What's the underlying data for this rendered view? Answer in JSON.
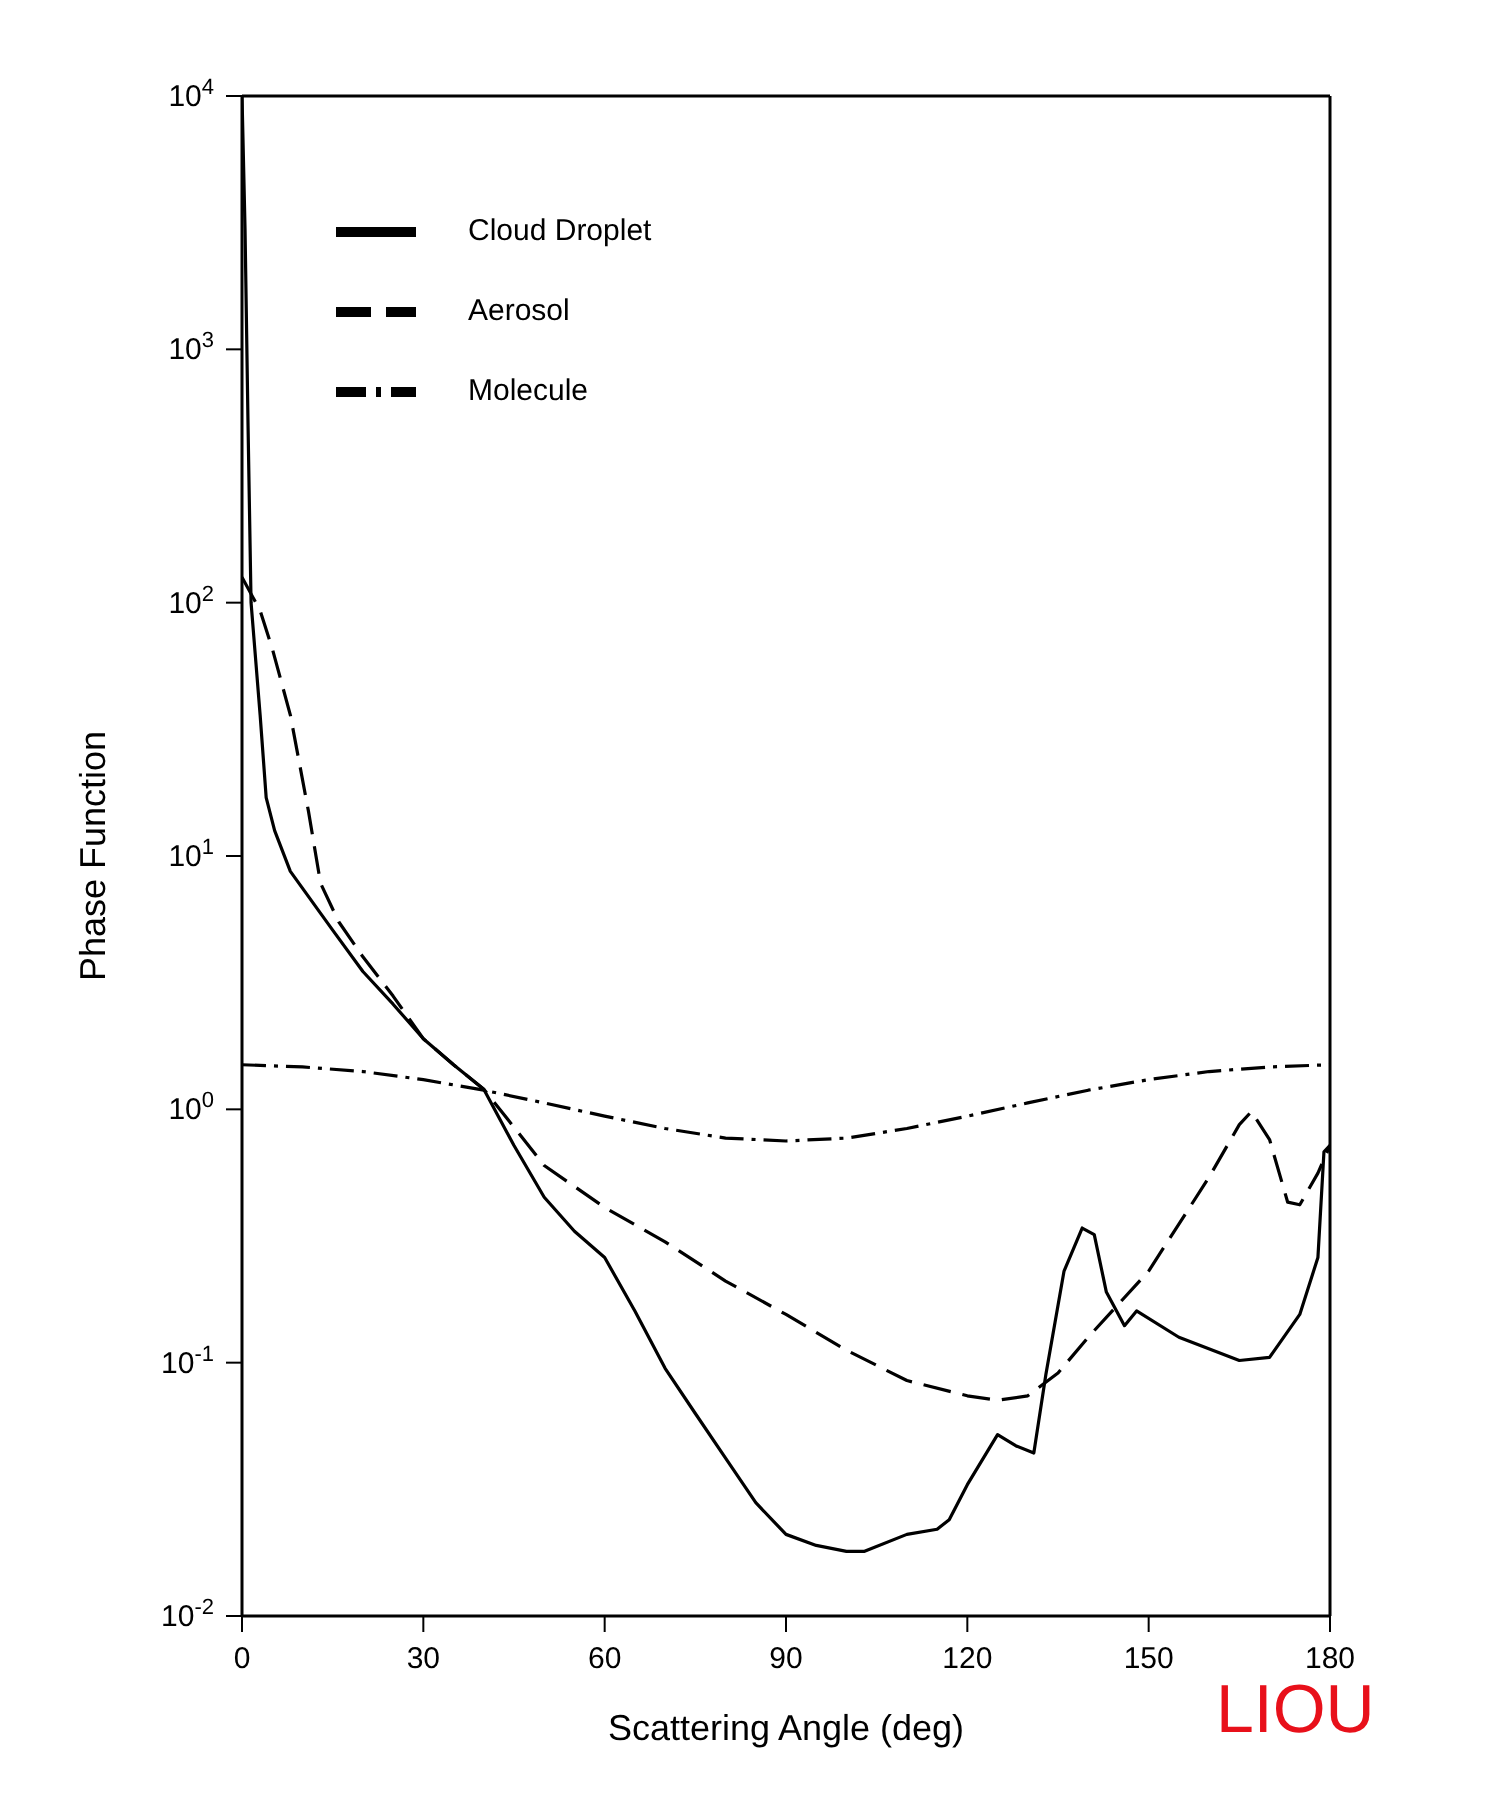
{
  "chart_data": {
    "type": "line",
    "xlabel": "Scattering Angle (deg)",
    "ylabel": "Phase Function",
    "log": "y",
    "grid": false,
    "legend": "top left",
    "marker": "none",
    "xlim": [
      0,
      180
    ],
    "xticks": [
      0,
      30,
      60,
      90,
      120,
      150,
      180
    ],
    "ylim": [
      0.01,
      10000
    ],
    "yticks": [
      {
        "value": 0.01,
        "label": "10$^{-2}$"
      },
      {
        "value": 0.1,
        "label": "10$^{-1}$"
      },
      {
        "value": 1,
        "label": "10$^{0}$"
      },
      {
        "value": 10,
        "label": "10$^{1}$"
      },
      {
        "value": 100,
        "label": "10$^{2}$"
      },
      {
        "value": 1000,
        "label": "10$^{3}$"
      },
      {
        "value": 10000,
        "label": "10$^{4}$"
      }
    ],
    "annotations": [
      "LIOU"
    ],
    "series": [
      {
        "name": "Cloud Droplet",
        "color": "#000000",
        "line_style": "solid",
        "x": [
          0,
          0.5,
          1,
          1.5,
          3,
          4,
          5.4,
          8,
          15,
          20,
          25,
          30,
          35,
          40,
          45,
          50,
          55,
          60,
          65,
          70,
          75,
          80,
          85,
          90,
          95,
          100,
          103,
          110,
          115,
          117,
          120,
          125,
          128,
          131,
          133,
          136,
          139,
          141,
          143,
          146,
          148,
          155,
          165,
          170,
          175,
          178,
          179,
          180
        ],
        "values": [
          10000,
          3000,
          500,
          100,
          36,
          17,
          12.6,
          8.7,
          5.1,
          3.5,
          2.6,
          1.9,
          1.5,
          1.2,
          0.72,
          0.45,
          0.33,
          0.26,
          0.16,
          0.095,
          0.063,
          0.042,
          0.028,
          0.021,
          0.019,
          0.018,
          0.018,
          0.021,
          0.022,
          0.024,
          0.033,
          0.052,
          0.047,
          0.044,
          0.09,
          0.23,
          0.34,
          0.32,
          0.19,
          0.14,
          0.16,
          0.126,
          0.102,
          0.105,
          0.155,
          0.26,
          0.68,
          0.72
        ]
      },
      {
        "name": "Aerosol",
        "color": "#000000",
        "line_style": "dashed",
        "x": [
          0,
          3,
          5,
          8,
          11,
          13,
          16,
          20,
          25,
          30,
          35,
          40,
          45,
          50,
          60,
          70,
          80,
          90,
          100,
          110,
          120,
          125,
          130,
          135,
          140,
          150,
          160,
          165,
          167,
          170,
          173,
          175,
          178,
          180
        ],
        "values": [
          126,
          93,
          66,
          36,
          15,
          7.8,
          5.5,
          4.0,
          2.8,
          1.9,
          1.5,
          1.2,
          0.85,
          0.6,
          0.41,
          0.3,
          0.21,
          0.155,
          0.112,
          0.085,
          0.074,
          0.071,
          0.074,
          0.091,
          0.126,
          0.23,
          0.54,
          0.87,
          0.98,
          0.76,
          0.43,
          0.42,
          0.56,
          0.72
        ]
      },
      {
        "name": "Molecule",
        "color": "#000000",
        "line_style": "dashdot",
        "x": [
          0,
          10,
          20,
          30,
          40,
          50,
          60,
          70,
          80,
          90,
          100,
          110,
          120,
          130,
          140,
          150,
          160,
          170,
          180
        ],
        "values": [
          1.5,
          1.47,
          1.41,
          1.31,
          1.19,
          1.06,
          0.94,
          0.84,
          0.77,
          0.75,
          0.77,
          0.84,
          0.94,
          1.06,
          1.19,
          1.31,
          1.41,
          1.47,
          1.5
        ]
      }
    ]
  }
}
